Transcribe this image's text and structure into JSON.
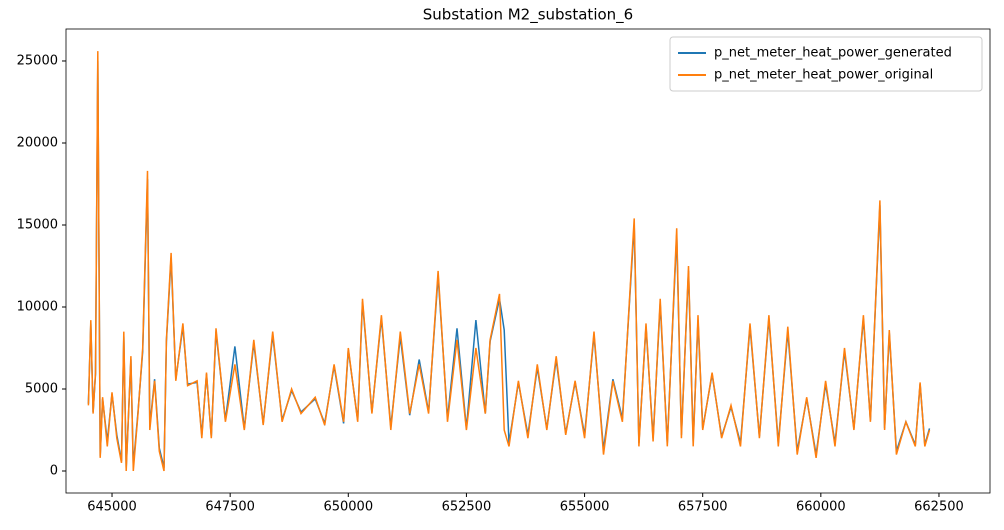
{
  "chart_data": {
    "type": "line",
    "title": "Substation M2_substation_6",
    "x": [
      644500,
      644550,
      644600,
      644650,
      644700,
      644750,
      644800,
      644900,
      645000,
      645100,
      645200,
      645250,
      645300,
      645400,
      645450,
      645550,
      645650,
      645750,
      645800,
      645900,
      646000,
      646100,
      646150,
      646250,
      646350,
      646500,
      646600,
      646800,
      646900,
      647000,
      647100,
      647200,
      647400,
      647600,
      647800,
      648000,
      648200,
      648400,
      648600,
      648800,
      649000,
      649300,
      649500,
      649700,
      649900,
      650000,
      650200,
      650300,
      650500,
      650700,
      650900,
      651100,
      651300,
      651500,
      651700,
      651900,
      652100,
      652300,
      652500,
      652700,
      652900,
      653000,
      653200,
      653300,
      653400,
      653600,
      653800,
      654000,
      654200,
      654400,
      654600,
      654800,
      655000,
      655200,
      655400,
      655600,
      655800,
      656050,
      656150,
      656300,
      656450,
      656600,
      656750,
      656950,
      657050,
      657200,
      657300,
      657400,
      657500,
      657700,
      657900,
      658100,
      658300,
      658500,
      658700,
      658900,
      659100,
      659300,
      659500,
      659700,
      659900,
      660100,
      660300,
      660500,
      660700,
      660900,
      661050,
      661250,
      661350,
      661450,
      661600,
      661800,
      662000,
      662100,
      662200,
      662300
    ],
    "series": [
      {
        "name": "p_net_meter_heat_power_generated",
        "color": "#1f77b4",
        "values": [
          4100,
          9000,
          3600,
          5900,
          25000,
          900,
          4400,
          1800,
          4700,
          2200,
          600,
          8200,
          200,
          6800,
          300,
          3600,
          7300,
          17800,
          2700,
          5600,
          1400,
          200,
          7900,
          13000,
          5600,
          8800,
          5300,
          5400,
          2200,
          5900,
          2100,
          8500,
          3100,
          7600,
          2600,
          7800,
          2900,
          8300,
          3100,
          4900,
          3600,
          4400,
          2900,
          6400,
          2900,
          7400,
          3100,
          10300,
          3600,
          9300,
          2700,
          8200,
          3400,
          6800,
          3600,
          11900,
          3200,
          8700,
          2600,
          9200,
          3500,
          7900,
          10500,
          8600,
          1700,
          5400,
          2200,
          6300,
          2600,
          6800,
          2300,
          5400,
          2200,
          8300,
          1300,
          5600,
          3200,
          15000,
          1700,
          8800,
          2000,
          10200,
          1700,
          14400,
          2200,
          12200,
          1800,
          9200,
          2600,
          5900,
          2100,
          3900,
          1700,
          8800,
          2100,
          9300,
          1700,
          8500,
          1200,
          4400,
          1000,
          5300,
          1700,
          7300,
          2600,
          9300,
          3100,
          16200,
          2600,
          8400,
          1200,
          3000,
          1600,
          5300,
          1600,
          2600
        ]
      },
      {
        "name": "p_net_meter_heat_power_original",
        "color": "#ff7f0e",
        "values": [
          4000,
          9200,
          3500,
          6000,
          25600,
          800,
          4500,
          1500,
          4800,
          2000,
          500,
          8500,
          0,
          7000,
          0,
          3500,
          7500,
          18300,
          2500,
          5500,
          1200,
          0,
          8000,
          13300,
          5500,
          9000,
          5200,
          5500,
          2000,
          6000,
          2000,
          8700,
          3000,
          6500,
          2500,
          8000,
          2800,
          8500,
          3000,
          5000,
          3500,
          4500,
          2800,
          6500,
          3000,
          7500,
          3000,
          10500,
          3500,
          9500,
          2500,
          8500,
          3500,
          6500,
          3500,
          12200,
          3000,
          8000,
          2500,
          7500,
          3500,
          8000,
          10800,
          2500,
          1500,
          5500,
          2000,
          6500,
          2500,
          7000,
          2200,
          5500,
          2000,
          8500,
          1000,
          5500,
          3000,
          15400,
          1500,
          9000,
          1800,
          10500,
          1500,
          14800,
          2000,
          12500,
          1500,
          9500,
          2500,
          6000,
          2000,
          4000,
          1500,
          9000,
          2000,
          9500,
          1500,
          8800,
          1000,
          4500,
          800,
          5500,
          1500,
          7500,
          2500,
          9500,
          3000,
          16500,
          2500,
          8600,
          1000,
          3000,
          1500,
          5400,
          1500,
          2500
        ]
      }
    ],
    "xlim": [
      644026,
      663580
    ],
    "ylim": [
      -1341,
      26950
    ],
    "xticks": [
      645000,
      647500,
      650000,
      652500,
      655000,
      657500,
      660000,
      662500
    ],
    "yticks": [
      0,
      5000,
      10000,
      15000,
      20000,
      25000
    ],
    "legend": "upper right"
  }
}
